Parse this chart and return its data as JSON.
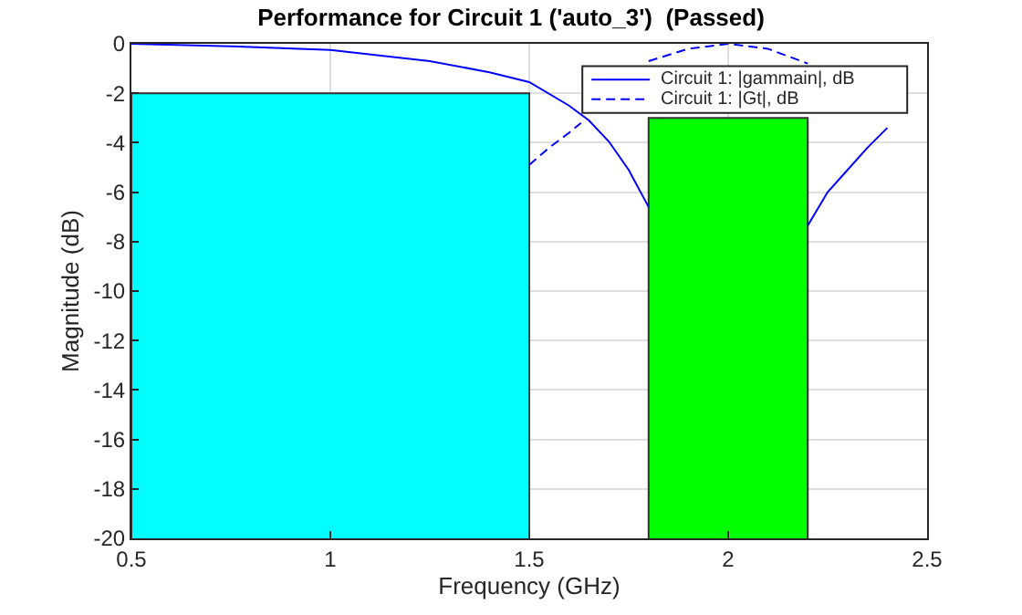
{
  "chart_data": {
    "type": "line",
    "title": "Performance for Circuit 1 ('auto_3')  (Passed)",
    "xlabel": "Frequency (GHz)",
    "ylabel": "Magnitude (dB)",
    "xlim": [
      0.5,
      2.5
    ],
    "xticks": [
      0.5,
      1,
      1.5,
      2,
      2.5
    ],
    "ylim": [
      -20,
      0
    ],
    "yticks": [
      -20,
      -18,
      -16,
      -14,
      -12,
      -10,
      -8,
      -6,
      -4,
      -2,
      0
    ],
    "grid": true,
    "legend": "top right",
    "series": [
      {
        "type": "area",
        "color": "#00ffff",
        "x": [
          0.5,
          0.5,
          1.5,
          1.5
        ],
        "values": [
          -20,
          -2,
          -2,
          -20
        ]
      },
      {
        "type": "area",
        "color": "#00ff00",
        "x": [
          1.8,
          1.8,
          2.2,
          2.2
        ],
        "values": [
          -20,
          -3,
          -3,
          -20
        ]
      },
      {
        "name": "Circuit 1: |gammain|, dB",
        "color": "#0000ff",
        "line_style": "solid",
        "x": [
          0.5,
          0.75,
          1.0,
          1.25,
          1.4,
          1.5,
          1.6,
          1.65,
          1.7,
          1.75,
          1.8,
          2.0,
          2.2,
          2.25,
          2.3,
          2.35,
          2.4
        ],
        "values": [
          0,
          -0.1,
          -0.25,
          -0.7,
          -1.15,
          -1.55,
          -2.5,
          -3.1,
          -3.95,
          -5.1,
          -6.6,
          null,
          -7.35,
          -6.0,
          -5.1,
          -4.2,
          -3.4
        ]
      },
      {
        "name": "Circuit 1: |Gt|, dB",
        "color": "#0000ff",
        "line_style": "dashed",
        "x": [
          1.5,
          1.55,
          1.6,
          1.63,
          1.7,
          1.8,
          1.9,
          2.0,
          2.1,
          2.2
        ],
        "values": [
          -4.9,
          -4.2,
          -3.6,
          -3.2,
          null,
          -0.7,
          -0.2,
          0,
          -0.2,
          -0.8
        ]
      }
    ]
  }
}
